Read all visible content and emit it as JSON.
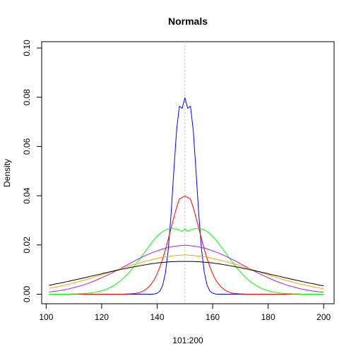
{
  "chart_data": {
    "type": "line",
    "title": "Normals",
    "xlabel": "101:200",
    "ylabel": "Density",
    "xlim": [
      101,
      200
    ],
    "ylim": [
      0,
      0.1
    ],
    "xticks": [
      100,
      120,
      140,
      160,
      180,
      200
    ],
    "yticks": [
      0.0,
      0.02,
      0.04,
      0.06,
      0.08,
      0.1
    ],
    "ytick_labels": [
      "0.00",
      "0.02",
      "0.04",
      "0.06",
      "0.08",
      "0.10"
    ],
    "grid": false,
    "legend": "none",
    "x": [
      101,
      102,
      103,
      104,
      105,
      106,
      107,
      108,
      109,
      110,
      111,
      112,
      113,
      114,
      115,
      116,
      117,
      118,
      119,
      120,
      121,
      122,
      123,
      124,
      125,
      126,
      127,
      128,
      129,
      130,
      131,
      132,
      133,
      134,
      135,
      136,
      137,
      138,
      139,
      140,
      141,
      142,
      143,
      144,
      145,
      146,
      147,
      148,
      149,
      150,
      151,
      152,
      153,
      154,
      155,
      156,
      157,
      158,
      159,
      160,
      161,
      162,
      163,
      164,
      165,
      166,
      167,
      168,
      169,
      170,
      171,
      172,
      173,
      174,
      175,
      176,
      177,
      178,
      179,
      180,
      181,
      182,
      183,
      184,
      185,
      186,
      187,
      188,
      189,
      190,
      191,
      192,
      193,
      194,
      195,
      196,
      197,
      198,
      199,
      200
    ],
    "reference_line": {
      "x": 150,
      "color": "#bbbbbb",
      "style": "dotted"
    },
    "series": [
      {
        "color": "#0000ff",
        "values": [
          0.0,
          0.0,
          0.0,
          0.0,
          0.0,
          0.0,
          0.0,
          0.0,
          0.0,
          0.0,
          0.0,
          0.0,
          0.0,
          0.0,
          0.0,
          0.0,
          0.0,
          0.0,
          0.0,
          0.0,
          0.0,
          0.0,
          0.0,
          0.0,
          0.0,
          0.0,
          0.0,
          0.0,
          0.0,
          0.0,
          0.0,
          0.0,
          0.0,
          0.0,
          0.0,
          0.0,
          0.0,
          0.0,
          0.0001,
          0.0004,
          0.0013,
          0.0036,
          0.0088,
          0.0181,
          0.0324,
          0.05,
          0.0666,
          0.0764,
          0.0755,
          0.0798,
          0.0755,
          0.0764,
          0.0666,
          0.05,
          0.0324,
          0.0181,
          0.0088,
          0.0036,
          0.0013,
          0.0004,
          0.0001,
          0.0,
          0.0,
          0.0,
          0.0,
          0.0,
          0.0,
          0.0,
          0.0,
          0.0,
          0.0,
          0.0,
          0.0,
          0.0,
          0.0,
          0.0,
          0.0,
          0.0,
          0.0,
          0.0,
          0.0,
          0.0,
          0.0,
          0.0,
          0.0,
          0.0,
          0.0,
          0.0,
          0.0,
          0.0,
          0.0,
          0.0,
          0.0,
          0.0,
          0.0,
          0.0,
          0.0,
          0.0,
          0.0,
          0.0
        ]
      },
      {
        "color": "#ff0000",
        "values": [
          0.0,
          0.0,
          0.0,
          0.0,
          0.0,
          0.0,
          0.0,
          0.0,
          0.0,
          0.0,
          0.0,
          0.0,
          0.0,
          0.0,
          0.0,
          0.0,
          0.0,
          0.0,
          0.0,
          0.0,
          0.0,
          0.0,
          0.0,
          0.0,
          0.0,
          0.0,
          0.0,
          0.0,
          0.0001,
          0.0001,
          0.0002,
          0.0003,
          0.0005,
          0.0008,
          0.0013,
          0.002,
          0.003,
          0.0043,
          0.006,
          0.0083,
          0.0111,
          0.0144,
          0.0182,
          0.0224,
          0.0268,
          0.0311,
          0.0352,
          0.0387,
          0.0393,
          0.0399,
          0.0393,
          0.0387,
          0.0352,
          0.0311,
          0.0268,
          0.0224,
          0.0182,
          0.0144,
          0.0111,
          0.0083,
          0.006,
          0.0043,
          0.003,
          0.002,
          0.0013,
          0.0008,
          0.0005,
          0.0003,
          0.0002,
          0.0001,
          0.0001,
          0.0,
          0.0,
          0.0,
          0.0,
          0.0,
          0.0,
          0.0,
          0.0,
          0.0,
          0.0,
          0.0,
          0.0,
          0.0,
          0.0,
          0.0,
          0.0,
          0.0,
          0.0,
          0.0,
          0.0,
          0.0,
          0.0,
          0.0,
          0.0,
          0.0,
          0.0,
          0.0,
          0.0,
          0.0
        ]
      },
      {
        "color": "#00ff00",
        "values": [
          0.0,
          0.0,
          0.0,
          0.0,
          0.0,
          0.0,
          0.0,
          0.0,
          0.0001,
          0.0001,
          0.0001,
          0.0002,
          0.0002,
          0.0003,
          0.0004,
          0.0005,
          0.0007,
          0.0009,
          0.0011,
          0.0014,
          0.0018,
          0.0022,
          0.0027,
          0.0033,
          0.004,
          0.0048,
          0.0057,
          0.0067,
          0.0078,
          0.009,
          0.0103,
          0.0117,
          0.0132,
          0.0147,
          0.0163,
          0.0178,
          0.0194,
          0.0209,
          0.0223,
          0.0235,
          0.0246,
          0.0255,
          0.0261,
          0.0265,
          0.0266,
          0.0266,
          0.0265,
          0.0261,
          0.0255,
          0.0266,
          0.0255,
          0.0261,
          0.0265,
          0.0266,
          0.0266,
          0.0265,
          0.0261,
          0.0255,
          0.0246,
          0.0235,
          0.0223,
          0.0209,
          0.0194,
          0.0178,
          0.0163,
          0.0147,
          0.0132,
          0.0117,
          0.0103,
          0.009,
          0.0078,
          0.0067,
          0.0057,
          0.0048,
          0.004,
          0.0033,
          0.0027,
          0.0022,
          0.0018,
          0.0014,
          0.0011,
          0.0009,
          0.0007,
          0.0005,
          0.0004,
          0.0003,
          0.0002,
          0.0002,
          0.0001,
          0.0001,
          0.0001,
          0.0,
          0.0,
          0.0,
          0.0,
          0.0,
          0.0,
          0.0,
          0.0,
          0.0
        ]
      },
      {
        "color": "#a020f0",
        "values": [
          0.0009,
          0.001,
          0.0012,
          0.0013,
          0.0015,
          0.0017,
          0.0019,
          0.0021,
          0.0024,
          0.0027,
          0.003,
          0.0033,
          0.0036,
          0.004,
          0.0044,
          0.0048,
          0.0052,
          0.0057,
          0.0062,
          0.0067,
          0.0072,
          0.0077,
          0.0083,
          0.0088,
          0.0094,
          0.01,
          0.0106,
          0.0112,
          0.0118,
          0.0124,
          0.013,
          0.0136,
          0.0142,
          0.0147,
          0.0153,
          0.0158,
          0.0163,
          0.0168,
          0.0172,
          0.0176,
          0.018,
          0.0184,
          0.0187,
          0.019,
          0.0192,
          0.0194,
          0.0196,
          0.0197,
          0.0198,
          0.0199,
          0.0198,
          0.0197,
          0.0196,
          0.0194,
          0.0192,
          0.019,
          0.0187,
          0.0184,
          0.018,
          0.0176,
          0.0172,
          0.0168,
          0.0163,
          0.0158,
          0.0153,
          0.0147,
          0.0142,
          0.0136,
          0.013,
          0.0124,
          0.0118,
          0.0112,
          0.0106,
          0.01,
          0.0094,
          0.0088,
          0.0083,
          0.0077,
          0.0072,
          0.0067,
          0.0062,
          0.0057,
          0.0052,
          0.0048,
          0.0044,
          0.004,
          0.0036,
          0.0033,
          0.003,
          0.0027,
          0.0024,
          0.0021,
          0.0019,
          0.0017,
          0.0015,
          0.0013,
          0.0012,
          0.001,
          0.0009,
          0.0008
        ]
      },
      {
        "color": "#ffa500",
        "values": [
          0.0024,
          0.0026,
          0.0028,
          0.003,
          0.0033,
          0.0035,
          0.0038,
          0.004,
          0.0043,
          0.0046,
          0.0049,
          0.0052,
          0.0055,
          0.0058,
          0.0061,
          0.0065,
          0.0068,
          0.0072,
          0.0075,
          0.0079,
          0.0083,
          0.0086,
          0.009,
          0.0094,
          0.0097,
          0.0101,
          0.0105,
          0.0108,
          0.0112,
          0.0115,
          0.0119,
          0.0122,
          0.0125,
          0.0128,
          0.0132,
          0.0135,
          0.0137,
          0.014,
          0.0143,
          0.0145,
          0.0148,
          0.015,
          0.0152,
          0.0153,
          0.0155,
          0.0156,
          0.0158,
          0.0158,
          0.0159,
          0.016,
          0.0159,
          0.0158,
          0.0158,
          0.0156,
          0.0155,
          0.0153,
          0.0152,
          0.015,
          0.0148,
          0.0145,
          0.0143,
          0.014,
          0.0137,
          0.0135,
          0.0132,
          0.0128,
          0.0125,
          0.0122,
          0.0119,
          0.0115,
          0.0112,
          0.0108,
          0.0105,
          0.0101,
          0.0097,
          0.0094,
          0.009,
          0.0086,
          0.0083,
          0.0079,
          0.0075,
          0.0072,
          0.0068,
          0.0065,
          0.0061,
          0.0058,
          0.0055,
          0.0052,
          0.0049,
          0.0046,
          0.0043,
          0.004,
          0.0038,
          0.0035,
          0.0033,
          0.003,
          0.0028,
          0.0026,
          0.0024,
          0.0022
        ]
      },
      {
        "color": "#000000",
        "values": [
          0.0036,
          0.0038,
          0.0041,
          0.0043,
          0.0045,
          0.0047,
          0.005,
          0.0052,
          0.0055,
          0.0057,
          0.006,
          0.0062,
          0.0065,
          0.0067,
          0.007,
          0.0073,
          0.0075,
          0.0078,
          0.008,
          0.0083,
          0.0086,
          0.0088,
          0.0091,
          0.0093,
          0.0096,
          0.0098,
          0.0101,
          0.0103,
          0.0105,
          0.0108,
          0.011,
          0.0112,
          0.0114,
          0.0116,
          0.0118,
          0.012,
          0.0122,
          0.0124,
          0.0125,
          0.0127,
          0.0128,
          0.0129,
          0.013,
          0.0131,
          0.0132,
          0.0132,
          0.0133,
          0.0133,
          0.0133,
          0.0133,
          0.0133,
          0.0133,
          0.0133,
          0.0132,
          0.0132,
          0.0131,
          0.013,
          0.0129,
          0.0128,
          0.0127,
          0.0125,
          0.0124,
          0.0122,
          0.012,
          0.0118,
          0.0116,
          0.0114,
          0.0112,
          0.011,
          0.0108,
          0.0105,
          0.0103,
          0.0101,
          0.0098,
          0.0096,
          0.0093,
          0.0091,
          0.0088,
          0.0086,
          0.0083,
          0.008,
          0.0078,
          0.0075,
          0.0073,
          0.007,
          0.0067,
          0.0065,
          0.0062,
          0.006,
          0.0057,
          0.0055,
          0.0052,
          0.005,
          0.0047,
          0.0045,
          0.0043,
          0.0041,
          0.0038,
          0.0036,
          0.0034
        ]
      }
    ]
  }
}
